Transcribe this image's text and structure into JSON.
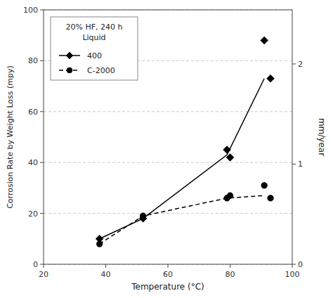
{
  "chart_data": {
    "type": "line",
    "xlabel": "Temperature (°C)",
    "ylabel": "Corrosion Rate by Weight Loss (mpy)",
    "y2label": "mm/year",
    "annotation": "20% HF, 240 h\nLiquid",
    "xlim": [
      20,
      100
    ],
    "ylim": [
      0,
      100
    ],
    "y2lim": [
      0,
      2.54
    ],
    "xticks": [
      20,
      40,
      60,
      80,
      100
    ],
    "yticks": [
      0,
      20,
      40,
      60,
      80,
      100
    ],
    "y2ticks": [
      0,
      1,
      2
    ],
    "grid": true,
    "legend": "upper-left",
    "series": [
      {
        "name": "400",
        "color": "black",
        "marker": "diamond",
        "line_style": "solid",
        "x": [
          38,
          52,
          79,
          91
        ],
        "values": [
          10,
          18,
          43,
          73
        ],
        "marker_x": [
          38,
          52,
          79,
          80,
          91,
          93
        ],
        "marker_values": [
          10,
          18,
          45,
          42,
          88,
          73
        ]
      },
      {
        "name": "C-2000",
        "color": "black",
        "marker": "circle",
        "line_style": "dashed",
        "x": [
          38,
          52,
          79,
          91
        ],
        "values": [
          8,
          19,
          26,
          27
        ],
        "marker_x": [
          38,
          52,
          79,
          80,
          91,
          93
        ],
        "marker_values": [
          8,
          19,
          26,
          27,
          31,
          26
        ]
      }
    ]
  }
}
